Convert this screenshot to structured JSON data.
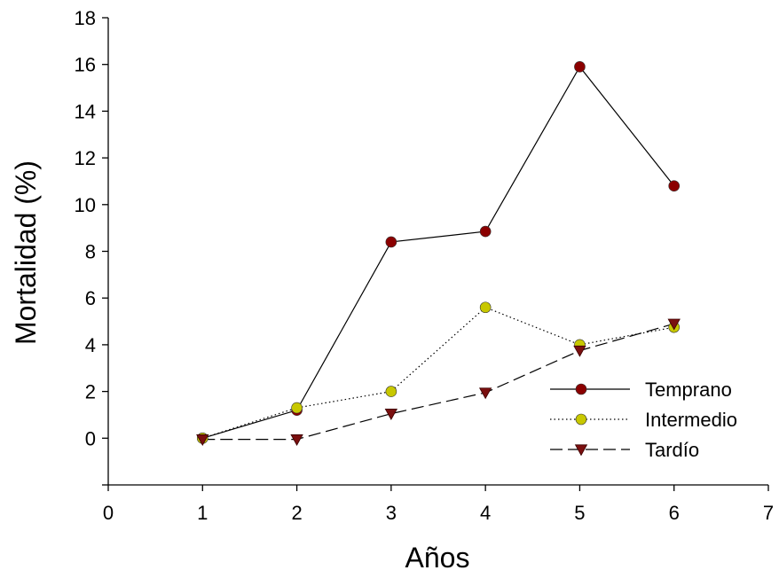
{
  "chart_data": {
    "type": "line",
    "title": "",
    "xlabel": "Años",
    "ylabel": "Mortalidad (%)",
    "xlim": [
      0,
      7
    ],
    "ylim": [
      -2,
      18
    ],
    "x_ticks": [
      0,
      1,
      2,
      3,
      4,
      5,
      6,
      7
    ],
    "y_ticks": [
      0,
      2,
      4,
      6,
      8,
      10,
      12,
      14,
      16,
      18
    ],
    "grid": false,
    "legend_position": "bottom-right",
    "series": [
      {
        "name": "Temprano",
        "x": [
          1,
          2,
          3,
          4,
          5,
          6
        ],
        "values": [
          0,
          1.2,
          8.4,
          8.85,
          15.9,
          10.8
        ],
        "color": "#8b0000",
        "marker": "circle",
        "line": "solid"
      },
      {
        "name": "Intermedio",
        "x": [
          1,
          2,
          3,
          4,
          5,
          6
        ],
        "values": [
          0,
          1.3,
          2.0,
          5.6,
          4.0,
          4.75
        ],
        "color": "#c8c800",
        "marker": "circle",
        "line": "dotted"
      },
      {
        "name": "Tardío",
        "x": [
          1,
          2,
          3,
          4,
          5,
          6
        ],
        "values": [
          -0.05,
          -0.05,
          1.05,
          1.95,
          3.75,
          4.9
        ],
        "color": "#7a0f0f",
        "marker": "triangle-down",
        "line": "dashed"
      }
    ]
  }
}
